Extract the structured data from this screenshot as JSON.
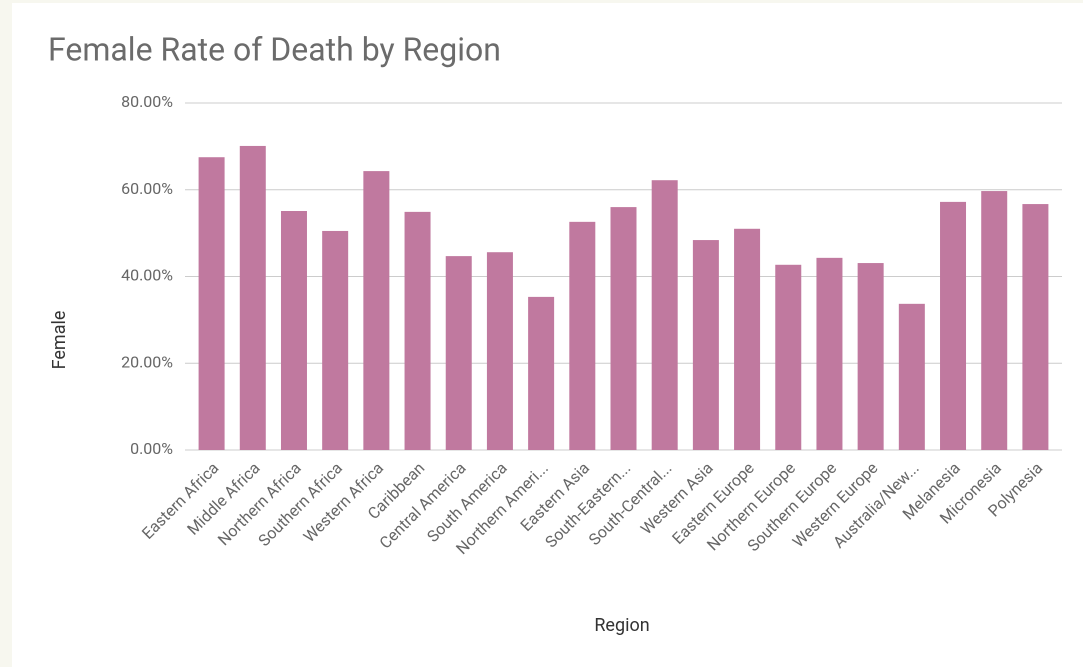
{
  "chart_data": {
    "type": "bar",
    "title": "Female Rate of Death by Region",
    "x_label": "Region",
    "y_label": "Female",
    "categories": [
      "Eastern Africa",
      "Middle Africa",
      "Northern Africa",
      "Southern Africa",
      "Western Africa",
      "Caribbean",
      "Central America",
      "South America",
      "Northern Ameri...",
      "Eastern Asia",
      "South-Eastern...",
      "South-Central...",
      "Western Asia",
      "Eastern Europe",
      "Northern Europe",
      "Southern Europe",
      "Western Europe",
      "Australia/New...",
      "Melanesia",
      "Micronesia",
      "Polynesia"
    ],
    "values": [
      67.5,
      70.1,
      55.1,
      50.5,
      64.3,
      54.9,
      44.7,
      45.6,
      35.3,
      52.6,
      56.0,
      62.2,
      48.4,
      51.0,
      42.7,
      44.3,
      43.1,
      33.7,
      57.2,
      59.7,
      56.7
    ],
    "color": "#c0799f",
    "ylim": [
      0,
      80
    ],
    "yticks": [
      {
        "value": 0,
        "label": "0.00%"
      },
      {
        "value": 20,
        "label": "20.00%"
      },
      {
        "value": 40,
        "label": "40.00%"
      },
      {
        "value": 60,
        "label": "60.00%"
      },
      {
        "value": 80,
        "label": "80.00%"
      }
    ],
    "grid": true
  }
}
